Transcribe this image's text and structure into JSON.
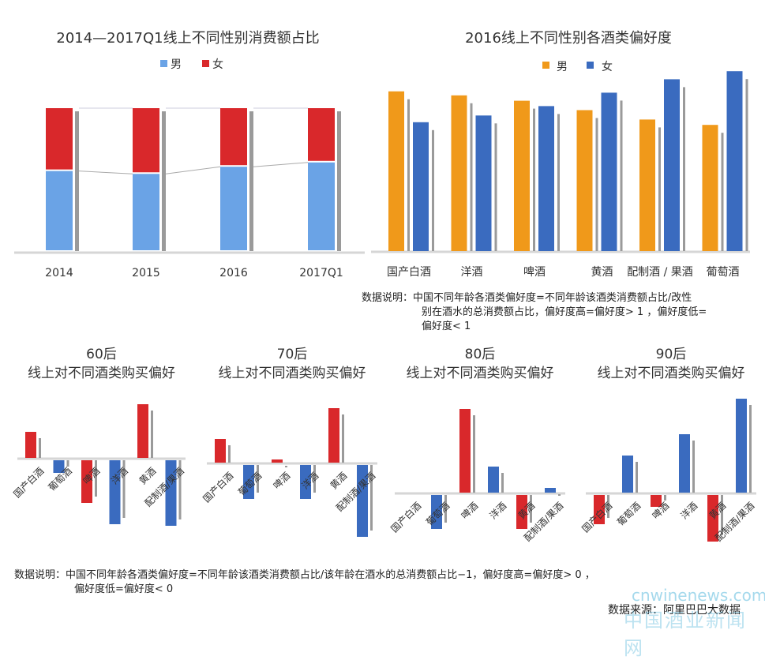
{
  "chart_data": [
    {
      "type": "bar",
      "stacked": true,
      "title": "2014—2017Q1线上不同性别消费额占比",
      "categories": [
        "2014",
        "2015",
        "2016",
        "2017Q1"
      ],
      "series": [
        {
          "name": "男",
          "color": "#6aa3e6",
          "values": [
            56,
            54,
            59,
            62
          ]
        },
        {
          "name": "女",
          "color": "#d9282b",
          "values": [
            44,
            46,
            41,
            38
          ]
        }
      ],
      "ylim": [
        0,
        100
      ],
      "legend": "top-center",
      "grid": false
    },
    {
      "type": "bar",
      "title": "2016线上不同性别各酒类偏好度",
      "categories": [
        "国产白酒",
        "洋酒",
        "啤酒",
        "黄酒",
        "配制酒 / 果酒",
        "葡萄酒"
      ],
      "series": [
        {
          "name": "男",
          "color": "#f0991a",
          "values": [
            1.19,
            1.16,
            1.12,
            1.05,
            0.98,
            0.94
          ]
        },
        {
          "name": "女",
          "color": "#3a6bbf",
          "values": [
            0.96,
            1.01,
            1.08,
            1.18,
            1.28,
            1.34
          ]
        }
      ],
      "ylim": [
        0,
        1.4
      ],
      "legend": "top-center",
      "grid": false
    },
    {
      "type": "bar",
      "title": "60后",
      "subtitle": "线上对不同酒类购买偏好",
      "categories": [
        "国产白酒",
        "葡萄酒",
        "啤酒",
        "洋酒",
        "黄酒",
        "配制酒/果酒"
      ],
      "values": [
        0.33,
        -0.16,
        -0.54,
        -0.81,
        0.68,
        -0.83
      ],
      "ylim": [
        -1,
        1.2
      ]
    },
    {
      "type": "bar",
      "title": "70后",
      "subtitle": "线上对不同酒类购买偏好",
      "categories": [
        "国产白酒",
        "葡萄酒",
        "啤酒",
        "洋酒",
        "黄酒",
        "配制酒/果酒"
      ],
      "values": [
        0.3,
        -0.43,
        0.04,
        -0.43,
        0.69,
        -0.91
      ],
      "ylim": [
        -1,
        1.2
      ]
    },
    {
      "type": "bar",
      "title": "80后",
      "subtitle": "线上对不同酒类购买偏好",
      "categories": [
        "国产白酒",
        "葡萄酒",
        "啤酒",
        "洋酒",
        "黄酒",
        "配制酒/果酒"
      ],
      "values": [
        0,
        -0.43,
        1.06,
        0.33,
        -0.43,
        0.06
      ],
      "ylim": [
        -1,
        1.2
      ]
    },
    {
      "type": "bar",
      "title": "90后",
      "subtitle": "线上对不同酒类购买偏好",
      "categories": [
        "国产白酒",
        "葡萄酒",
        "啤酒",
        "洋酒",
        "黄酒",
        "配制酒/果酒"
      ],
      "values": [
        -0.37,
        0.47,
        -0.15,
        0.74,
        -0.59,
        1.19
      ],
      "ylim": [
        -1,
        1.2
      ]
    }
  ],
  "colors": {
    "red": "#d9282b",
    "blue": "#3a6bbf",
    "shadow": "#9a9a9a",
    "axis": "#d6d6d6"
  },
  "notes": {
    "gender_note_lines": [
      "数据说明：中国不同年龄各酒类偏好度=不同年龄该酒类消费额占比/改性",
      "别在酒水的总消费额占比，偏好度高=偏好度> 1 ，偏好度低=",
      "偏好度< 1"
    ],
    "age_note_lines": [
      "数据说明：中国不同年龄各酒类偏好度=不同年龄该酒类消费额占比/该年龄在酒水的总消费额占比−1，偏好度高=偏好度> 0 ，",
      "偏好度低=偏好度< 0"
    ],
    "source": "数据来源：阿里巴巴大数据",
    "watermark_url": "cnwinenews.com",
    "watermark_name": "中国酒业新闻网"
  }
}
